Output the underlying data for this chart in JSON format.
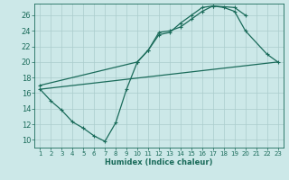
{
  "xlabel": "Humidex (Indice chaleur)",
  "bg_color": "#cce8e8",
  "grid_color": "#aacccc",
  "line_color": "#1a6b5a",
  "xlim": [
    0.5,
    23.5
  ],
  "ylim": [
    9,
    27.5
  ],
  "xticks": [
    1,
    2,
    3,
    4,
    5,
    6,
    7,
    8,
    9,
    10,
    11,
    12,
    13,
    14,
    15,
    16,
    17,
    18,
    19,
    20,
    21,
    22,
    23
  ],
  "yticks": [
    10,
    12,
    14,
    16,
    18,
    20,
    22,
    24,
    26
  ],
  "s1x": [
    1,
    2,
    3,
    4,
    5,
    6,
    7,
    8,
    9,
    10,
    11,
    12,
    13,
    14,
    15,
    16,
    17,
    18,
    19,
    20,
    22,
    23
  ],
  "s1y": [
    16.5,
    15.0,
    13.8,
    12.3,
    11.5,
    10.5,
    9.8,
    12.2,
    16.5,
    20.0,
    21.5,
    23.5,
    23.8,
    25.0,
    26.0,
    27.0,
    27.2,
    27.0,
    26.5,
    24.0,
    21.0,
    20.0
  ],
  "s2x": [
    1,
    10,
    11,
    12,
    13,
    14,
    15,
    16,
    17,
    19,
    20
  ],
  "s2y": [
    17.0,
    20.0,
    21.5,
    23.8,
    24.0,
    24.5,
    25.5,
    26.5,
    27.2,
    27.0,
    26.0
  ],
  "s3x": [
    1,
    23
  ],
  "s3y": [
    16.5,
    20.0
  ],
  "xlabel_fontsize": 6,
  "tick_fontsize": 5,
  "ylabel_fontsize": 6,
  "linewidth": 0.9,
  "markersize": 3
}
